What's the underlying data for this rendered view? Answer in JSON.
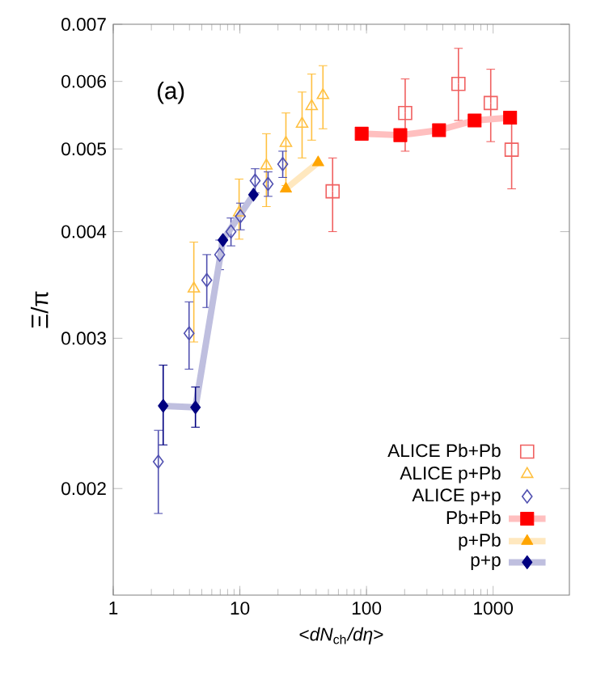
{
  "chart_data": {
    "type": "scatter",
    "xlabel": "<*dN*$_{ch}$*/dη*>",
    "ylabel": "Ξ/π",
    "annotations": [
      "(a)"
    ],
    "log": "xy",
    "xlim": [
      1,
      4000
    ],
    "ylim": [
      0.0015,
      0.007
    ],
    "xticks": [
      1,
      10,
      100,
      1000
    ],
    "yticks": [
      0.002,
      0.003,
      0.004,
      0.005,
      0.006,
      0.007
    ],
    "legend": "bottom right",
    "grid": false,
    "series": [
      {
        "name": "ALICE Pb+Pb",
        "marker": "square",
        "color": "#f06060",
        "x": [
          54,
          202,
          532,
          957,
          1400
        ],
        "values": [
          0.00446,
          0.00551,
          0.00596,
          0.00566,
          0.00499
        ],
        "errors": [
          [
            0.004,
            0.00488
          ],
          [
            0.00497,
            0.00604
          ],
          [
            0.0054,
            0.00656
          ],
          [
            0.0051,
            0.0062
          ],
          [
            0.00449,
            0.00551
          ]
        ]
      },
      {
        "name": "ALICE p+Pb",
        "marker": "triangle",
        "color": "#ffc040",
        "x": [
          4.33,
          9.86,
          16.2,
          23.1,
          31,
          36.9,
          45.3
        ],
        "values": [
          0.00343,
          0.00421,
          0.00478,
          0.00508,
          0.00535,
          0.00561,
          0.00578
        ],
        "errors": [
          [
            0.00297,
            0.00389
          ],
          [
            0.00392,
            0.00461
          ],
          [
            0.00428,
            0.00521
          ],
          [
            0.00453,
            0.00551
          ],
          [
            0.00488,
            0.00583
          ],
          [
            0.00512,
            0.00612
          ],
          [
            0.00528,
            0.00626
          ]
        ]
      },
      {
        "name": "ALICE p+p",
        "marker": "diamond",
        "color": "#5050b0",
        "x": [
          2.27,
          3.97,
          5.48,
          6.93,
          8.51,
          10.1,
          13.2,
          16.7,
          21.8
        ],
        "values": [
          0.00215,
          0.00304,
          0.00351,
          0.00376,
          0.004,
          0.00417,
          0.00459,
          0.00455,
          0.0048
        ],
        "errors": [
          [
            0.00187,
            0.00234
          ],
          [
            0.00276,
            0.00331
          ],
          [
            0.00326,
            0.00376
          ],
          0.00015,
          0.00015,
          0.00015,
          0.00015,
          0.00015,
          0.00017
        ]
      },
      {
        "name": "Pb+Pb",
        "type": "line",
        "marker": "square",
        "color": "#ff0000",
        "x": [
          91.6,
          185,
          374,
          714,
          1361
        ],
        "values": [
          0.00521,
          0.00519,
          0.00526,
          0.0054,
          0.00544
        ]
      },
      {
        "name": "p+Pb",
        "type": "line",
        "marker": "triangle",
        "color": "#ffa500",
        "x": [
          23.1,
          41.5
        ],
        "values": [
          0.00449,
          0.00482
        ]
      },
      {
        "name": "p+p",
        "type": "line",
        "marker": "diamond",
        "color": "#000080",
        "x": [
          2.48,
          4.46,
          7.35,
          12.8
        ],
        "values": [
          0.0025,
          0.00249,
          0.00391,
          0.00442
        ],
        "errors": [
          [
            0.00225,
            0.00279
          ],
          [
            0.00236,
            0.00263
          ],
          null,
          null
        ]
      }
    ]
  }
}
